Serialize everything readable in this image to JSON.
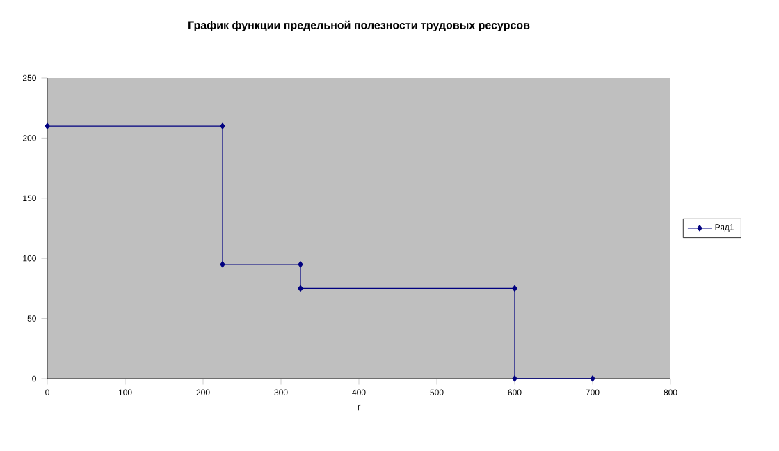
{
  "chart_data": {
    "type": "line",
    "title": "График функции предельной полезности трудовых ресурсов",
    "xlabel": "r",
    "series": [
      {
        "name": "Ряд1",
        "color": "#000080",
        "x": [
          0,
          225,
          225,
          325,
          325,
          600,
          600,
          700
        ],
        "values": [
          210,
          210,
          95,
          95,
          75,
          75,
          0,
          0
        ]
      }
    ],
    "xlim": [
      0,
      800
    ],
    "xticks": [
      0,
      100,
      200,
      300,
      400,
      500,
      600,
      700,
      800
    ],
    "ylim": [
      0,
      250
    ],
    "yticks": [
      0,
      50,
      100,
      150,
      200,
      250
    ],
    "marker": "diamond",
    "line_style": "solid",
    "legend": "right",
    "grid": false
  }
}
